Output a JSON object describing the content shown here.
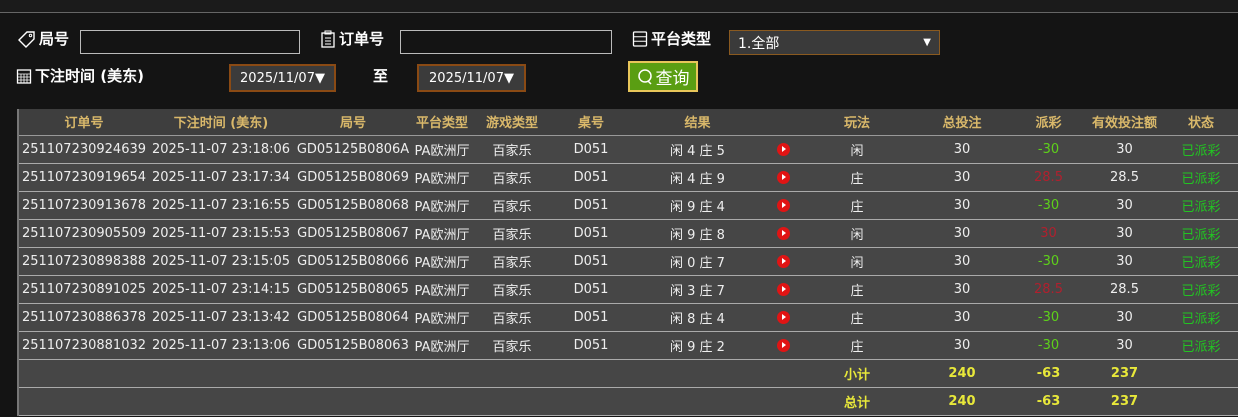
{
  "filters": {
    "round_label": "局号",
    "round_value": "",
    "order_label": "订单号",
    "order_value": "",
    "platform_label": "平台类型",
    "platform_selected": "1.全部",
    "time_label": "下注时间 (美东)",
    "date_from": "2025/11/07▼",
    "to_label": "至",
    "date_to": "2025/11/07▼",
    "query_label": "查询"
  },
  "table": {
    "headers": [
      "订单号",
      "下注时间 (美东)",
      "局号",
      "平台类型",
      "游戏类型",
      "桌号",
      "结果",
      "",
      "玩法",
      "总投注",
      "派彩",
      "有效投注额",
      "状态"
    ],
    "rows": [
      {
        "order": "251107230924639",
        "time": "2025-11-07 23:18:06",
        "round": "GD05125B0806A",
        "platform": "PA欧洲厅",
        "game": "百家乐",
        "table": "D051",
        "result": "闲 4 庄 5",
        "bet_type": "闲",
        "bet": "30",
        "payout": "-30",
        "payout_color": "green",
        "valid": "30",
        "status": "已派彩"
      },
      {
        "order": "251107230919654",
        "time": "2025-11-07 23:17:34",
        "round": "GD05125B08069",
        "platform": "PA欧洲厅",
        "game": "百家乐",
        "table": "D051",
        "result": "闲 4 庄 9",
        "bet_type": "庄",
        "bet": "30",
        "payout": "28.5",
        "payout_color": "red",
        "valid": "28.5",
        "status": "已派彩"
      },
      {
        "order": "251107230913678",
        "time": "2025-11-07 23:16:55",
        "round": "GD05125B08068",
        "platform": "PA欧洲厅",
        "game": "百家乐",
        "table": "D051",
        "result": "闲 9 庄 4",
        "bet_type": "庄",
        "bet": "30",
        "payout": "-30",
        "payout_color": "green",
        "valid": "30",
        "status": "已派彩"
      },
      {
        "order": "251107230905509",
        "time": "2025-11-07 23:15:53",
        "round": "GD05125B08067",
        "platform": "PA欧洲厅",
        "game": "百家乐",
        "table": "D051",
        "result": "闲 9 庄 8",
        "bet_type": "闲",
        "bet": "30",
        "payout": "30",
        "payout_color": "red",
        "valid": "30",
        "status": "已派彩"
      },
      {
        "order": "251107230898388",
        "time": "2025-11-07 23:15:05",
        "round": "GD05125B08066",
        "platform": "PA欧洲厅",
        "game": "百家乐",
        "table": "D051",
        "result": "闲 0 庄 7",
        "bet_type": "闲",
        "bet": "30",
        "payout": "-30",
        "payout_color": "green",
        "valid": "30",
        "status": "已派彩"
      },
      {
        "order": "251107230891025",
        "time": "2025-11-07 23:14:15",
        "round": "GD05125B08065",
        "platform": "PA欧洲厅",
        "game": "百家乐",
        "table": "D051",
        "result": "闲 3 庄 7",
        "bet_type": "庄",
        "bet": "30",
        "payout": "28.5",
        "payout_color": "red",
        "valid": "28.5",
        "status": "已派彩"
      },
      {
        "order": "251107230886378",
        "time": "2025-11-07 23:13:42",
        "round": "GD05125B08064",
        "platform": "PA欧洲厅",
        "game": "百家乐",
        "table": "D051",
        "result": "闲 8 庄 4",
        "bet_type": "庄",
        "bet": "30",
        "payout": "-30",
        "payout_color": "green",
        "valid": "30",
        "status": "已派彩"
      },
      {
        "order": "251107230881032",
        "time": "2025-11-07 23:13:06",
        "round": "GD05125B08063",
        "platform": "PA欧洲厅",
        "game": "百家乐",
        "table": "D051",
        "result": "闲 9 庄 2",
        "bet_type": "庄",
        "bet": "30",
        "payout": "-30",
        "payout_color": "green",
        "valid": "30",
        "status": "已派彩"
      }
    ],
    "subtotal": {
      "label": "小计",
      "bet": "240",
      "payout": "-63",
      "valid": "237"
    },
    "total": {
      "label": "总计",
      "bet": "240",
      "payout": "-63",
      "valid": "237"
    }
  },
  "colors": {
    "header_text": "#d9b86a",
    "win_red": "#b0202e",
    "loss_green": "#5ed11a",
    "status_green": "#22c422",
    "total_yellow": "#e8e83a",
    "query_button": "#5a9e12"
  }
}
